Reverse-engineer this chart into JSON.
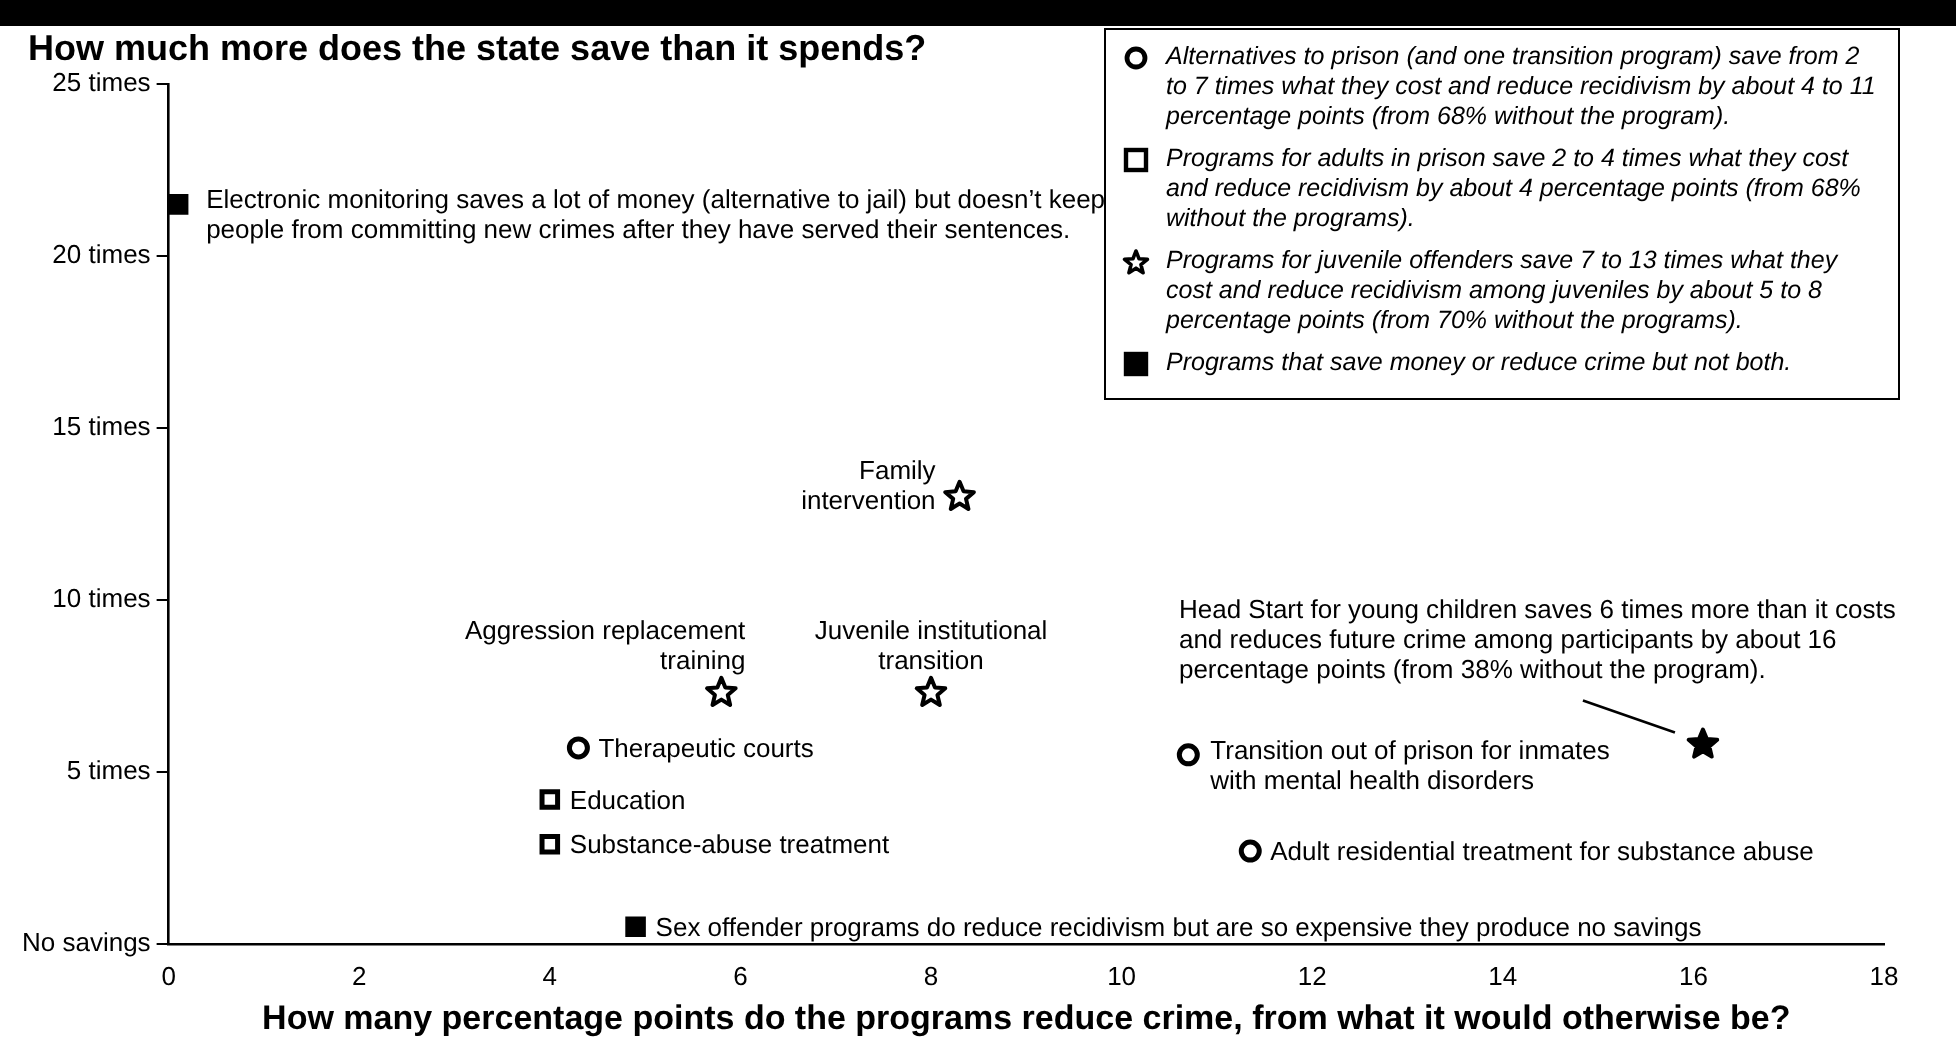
{
  "chart_data": {
    "type": "scatter",
    "ylabel": "How much more does the state save than it spends?",
    "xlabel": "How many percentage points do the programs reduce crime, from what it would otherwise be?",
    "xlim": [
      0,
      18
    ],
    "xticks": [
      0,
      2,
      4,
      6,
      8,
      10,
      12,
      14,
      16,
      18
    ],
    "ylim": [
      0,
      25
    ],
    "yticks": [
      {
        "value": 0,
        "label": "No savings"
      },
      {
        "value": 5,
        "label": "5 times"
      },
      {
        "value": 10,
        "label": "10 times"
      },
      {
        "value": 15,
        "label": "15 times"
      },
      {
        "value": 20,
        "label": "20 times"
      },
      {
        "value": 25,
        "label": "25 times"
      }
    ],
    "grid": false,
    "legend": "top right",
    "series": [
      {
        "name": "Alternatives to prison (and one transition program) save from 2 to 7 times what they cost and reduce recidivism by about 4 to 11 percentage points (from 68% without the program).",
        "color": "#000000",
        "marker": "circle",
        "x": [
          4.3,
          10.7,
          11.35
        ],
        "values": [
          5.7,
          5.5,
          2.7
        ]
      },
      {
        "name": "Programs for adults in prison save 2 to 4 times what they cost and reduce recidivism by about 4 percentage points (from 68% without the programs).",
        "color": "#000000",
        "marker": "square",
        "x": [
          4.0,
          4.0
        ],
        "values": [
          4.2,
          2.9
        ]
      },
      {
        "name": "Programs for juvenile offenders save 7 to 13 times what they cost and reduce recidivism among juveniles by about 5 to 8 percentage points (from 70% without the programs).",
        "color": "#000000",
        "marker": "star",
        "x": [
          5.8,
          8.0,
          8.3
        ],
        "values": [
          7.3,
          7.3,
          13.0
        ]
      },
      {
        "name": "Programs that save money or reduce crime but not both.",
        "color": "#000000",
        "marker": "square",
        "x": [
          0.1,
          4.9
        ],
        "values": [
          21.5,
          0.5
        ]
      },
      {
        "color": "#000000",
        "marker": "star",
        "x": [
          16.1
        ],
        "values": [
          5.8
        ]
      }
    ],
    "annotations": [
      {
        "text": "Electronic monitoring saves a lot of money (alternative to jail) but doesn’t keep people from committing new crimes after they have served their sentences.",
        "x": 0.1,
        "y": 21.5
      },
      {
        "text": "Family intervention",
        "x": 8.3,
        "y": 13.0
      },
      {
        "text": "Aggression replacement training",
        "x": 5.8,
        "y": 7.3
      },
      {
        "text": "Juvenile institutional transition",
        "x": 8.0,
        "y": 7.3
      },
      {
        "text": "Therapeutic courts",
        "x": 4.3,
        "y": 5.7
      },
      {
        "text": "Education",
        "x": 4.0,
        "y": 4.2
      },
      {
        "text": "Substance-abuse treatment",
        "x": 4.0,
        "y": 2.9
      },
      {
        "text": "Sex offender programs do reduce recidivism but are so expensive they produce no savings",
        "x": 4.9,
        "y": 0.5
      },
      {
        "text": "Head Start for young children saves 6 times more than it costs and reduces future crime among participants by about 16 percentage points (from 38% without the program).",
        "x": 16.1,
        "y": 5.8
      },
      {
        "text": "Transition out of prison for inmates with mental health disorders",
        "x": 10.7,
        "y": 5.5
      },
      {
        "text": "Adult residential treatment for substance abuse",
        "x": 11.35,
        "y": 2.7
      }
    ]
  }
}
